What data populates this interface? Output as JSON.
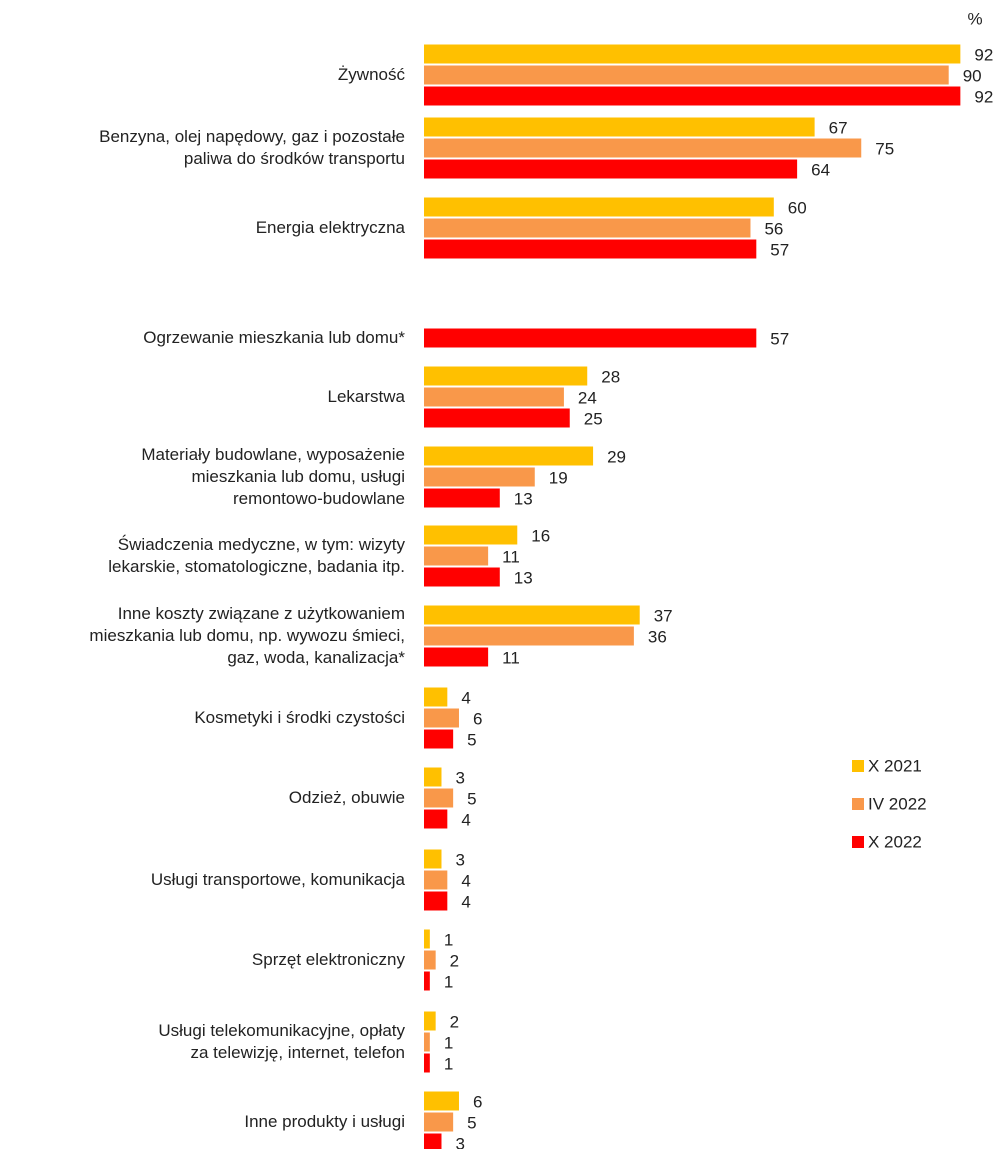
{
  "chart_data": {
    "type": "bar",
    "orientation": "horizontal",
    "unit": "%",
    "categories": [
      "Żywność",
      "Benzyna, olej napędowy, gaz i pozostałe\npaliwa do środków transportu",
      "Energia elektryczna",
      "Ogrzewanie mieszkania lub domu*",
      "Lekarstwa",
      "Materiały budowlane, wyposażenie\nmieszkania lub domu, usługi\nremontowo-budowlane",
      "Świadczenia medyczne, w tym: wizyty\nlekarskie, stomatologiczne, badania itp.",
      "Inne koszty związane z użytkowaniem\nmieszkania lub domu, np. wywozu śmieci,\ngaz, woda, kanalizacja*",
      "Kosmetyki i środki czystości",
      "Odzież, obuwie",
      "Usługi transportowe, komunikacja",
      "Sprzęt elektroniczny",
      "Usługi telekomunikacyjne, opłaty\nza telewizję, internet, telefon",
      "Inne produkty i usługi"
    ],
    "series": [
      {
        "name": "X 2021",
        "color": "#ffc000",
        "values": [
          92,
          67,
          60,
          null,
          28,
          29,
          16,
          37,
          4,
          3,
          3,
          1,
          2,
          6
        ]
      },
      {
        "name": "IV 2022",
        "color": "#f9984a",
        "values": [
          90,
          75,
          56,
          null,
          24,
          19,
          11,
          36,
          6,
          5,
          4,
          2,
          1,
          5
        ]
      },
      {
        "name": "X 2022",
        "color": "#ff0000",
        "values": [
          92,
          64,
          57,
          57,
          25,
          13,
          13,
          11,
          5,
          4,
          4,
          1,
          1,
          3
        ]
      }
    ],
    "xlim": [
      0,
      100
    ],
    "legend": "right"
  }
}
